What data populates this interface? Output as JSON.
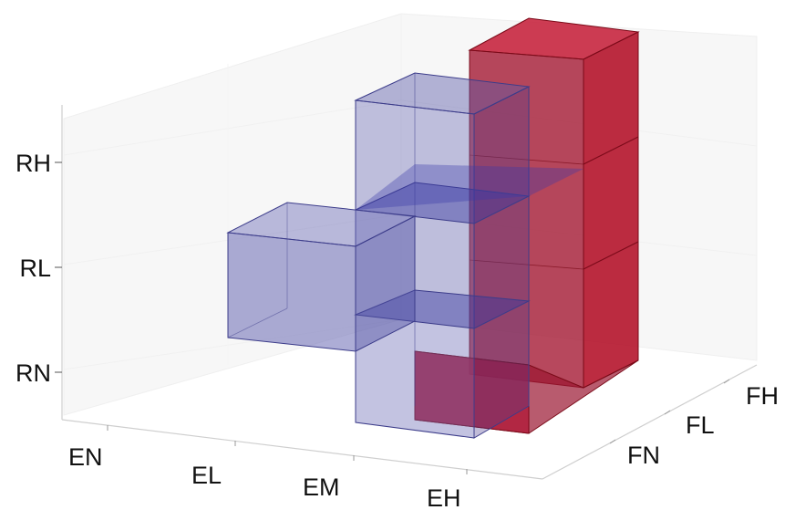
{
  "axes": {
    "x_ticks": [
      "EN",
      "EL",
      "EM",
      "EH"
    ],
    "y_ticks": [
      "FN",
      "FL",
      "FH"
    ],
    "z_ticks": [
      "RN",
      "RL",
      "RH"
    ]
  },
  "colors": {
    "blue_face": "#5a5aa8",
    "blue_edge": "#3c3c8a",
    "red_face": "#b0122a",
    "red_edge": "#7a0a18",
    "grid": "#d6d6d6"
  },
  "blocks": [
    {
      "name": "blue-cube-small",
      "color": "blue"
    },
    {
      "name": "blue-tall-slab",
      "color": "blue"
    },
    {
      "name": "red-tall-block",
      "color": "red"
    }
  ]
}
